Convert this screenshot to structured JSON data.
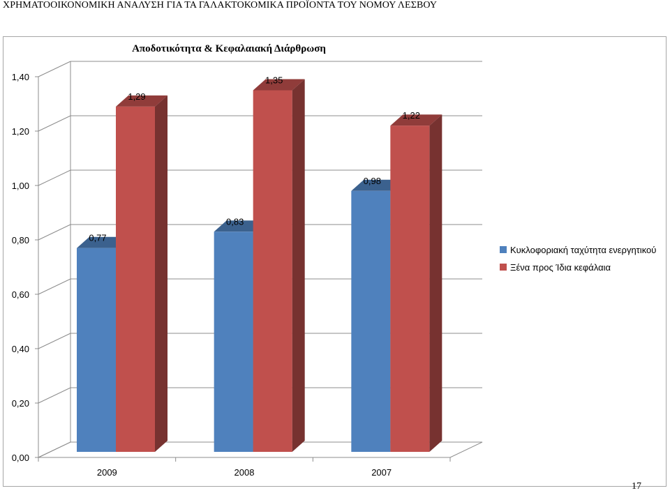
{
  "document": {
    "header": "ΧΡΗΜΑΤΟΟΙΚΟΝΟΜΙΚΗ ΑΝΑΛΥΣΗ ΓΙΑ ΤΑ ΓΑΛΑΚΤΟΚΟΜΙΚΑ ΠΡΟΪΟΝΤΑ ΤΟΥ ΝΟΜΟΥ ΛΕΣΒΟΥ",
    "page_number": "17"
  },
  "chart_data": {
    "type": "bar",
    "title": "Αποδοτικότητα & Κεφαλαιακή Διάρθρωση",
    "xlabel": "",
    "ylabel": "",
    "categories": [
      "2009",
      "2008",
      "2007"
    ],
    "series": [
      {
        "name": "Κυκλοφοριακή ταχύτητα ενεργητικού",
        "values": [
          0.77,
          0.83,
          0.98
        ],
        "labels": [
          "0,77",
          "0,83",
          "0,98"
        ],
        "color": "#4f81bd"
      },
      {
        "name": "Ξένα προς Ίδια κεφάλαια",
        "values": [
          1.29,
          1.35,
          1.22
        ],
        "labels": [
          "1,29",
          "1,35",
          "1,22"
        ],
        "color": "#c0504d"
      }
    ],
    "ylim": [
      0,
      1.4
    ],
    "yticks": [
      0,
      0.2,
      0.4,
      0.6,
      0.8,
      1.0,
      1.2,
      1.4
    ],
    "ytick_labels": [
      "0,00",
      "0,20",
      "0,40",
      "0,60",
      "0,80",
      "1,00",
      "1,20",
      "1,40"
    ],
    "grid": true,
    "legend": "right",
    "style": "3d"
  }
}
